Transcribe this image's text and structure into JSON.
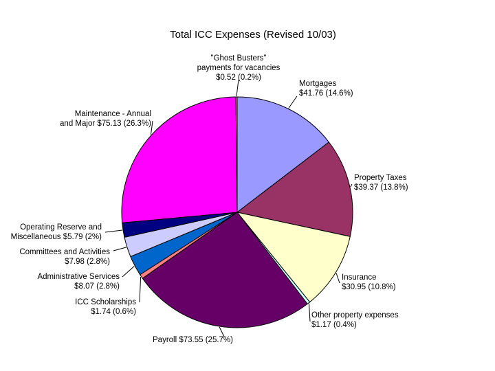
{
  "chart_data": {
    "type": "pie",
    "title": "Total ICC Expenses (Revised 10/03)",
    "slices": [
      {
        "name": "Mortgages",
        "value": 41.76,
        "percent_label": "$41.76 (14.6%)",
        "label_lines": [
          "Mortgages",
          "$41.76 (14.6%)"
        ],
        "color": "#9999ff"
      },
      {
        "name": "Property Taxes",
        "value": 39.37,
        "percent_label": "$39.37 (13.8%)",
        "label_lines": [
          "Property Taxes",
          "$39.37 (13.8%)"
        ],
        "color": "#993366"
      },
      {
        "name": "Insurance",
        "value": 30.95,
        "percent_label": "$30.95 (10.8%)",
        "label_lines": [
          "Insurance",
          "$30.95 (10.8%)"
        ],
        "color": "#ffffcc"
      },
      {
        "name": "Other property expenses",
        "value": 1.17,
        "percent_label": "$1.17 (0.4%)",
        "label_lines": [
          "Other property expenses",
          "$1.17 (0.4%)"
        ],
        "color": "#ccffff"
      },
      {
        "name": "Payroll",
        "value": 73.55,
        "percent_label": "$73.55 (25.7%)",
        "label_lines": [
          "Payroll  $73.55 (25.7%)"
        ],
        "color": "#660066"
      },
      {
        "name": "ICC Scholarships",
        "value": 1.74,
        "percent_label": "$1.74 (0.6%)",
        "label_lines": [
          "ICC Scholarships",
          "$1.74 (0.6%)"
        ],
        "color": "#ff8080"
      },
      {
        "name": "Administrative Services",
        "value": 8.07,
        "percent_label": "$8.07 (2.8%)",
        "label_lines": [
          "Administrative Services",
          "$8.07 (2.8%)"
        ],
        "color": "#0066cc"
      },
      {
        "name": "Committees and Activities",
        "value": 7.98,
        "percent_label": "$7.98 (2.8%)",
        "label_lines": [
          "Committees and Activities",
          "$7.98 (2.8%)"
        ],
        "color": "#ccccff"
      },
      {
        "name": "Operating Reserve and Miscellaneous",
        "value": 5.79,
        "percent_label": "$5.79 (2%)",
        "label_lines": [
          "Operating Reserve and",
          "Miscellaneous $5.79 (2%)"
        ],
        "color": "#000080"
      },
      {
        "name": "Maintenance - Annual and Major",
        "value": 75.13,
        "percent_label": "$75.13 (26.3%)",
        "label_lines": [
          "Maintenance - Annual",
          "and Major $75.13 (26.3%)"
        ],
        "color": "#ff00ff"
      },
      {
        "name": "\"Ghost Busters\" payments for vacancies",
        "value": 0.52,
        "percent_label": "$0.52 (0.2%)",
        "label_lines": [
          "\"Ghost Busters\"",
          "payments for vacancies",
          "$0.52 (0.2%)"
        ],
        "color": "#ffcc99"
      }
    ],
    "start": "12 o'clock",
    "direction": "clockwise",
    "legend": "none (labels beside slices)"
  }
}
